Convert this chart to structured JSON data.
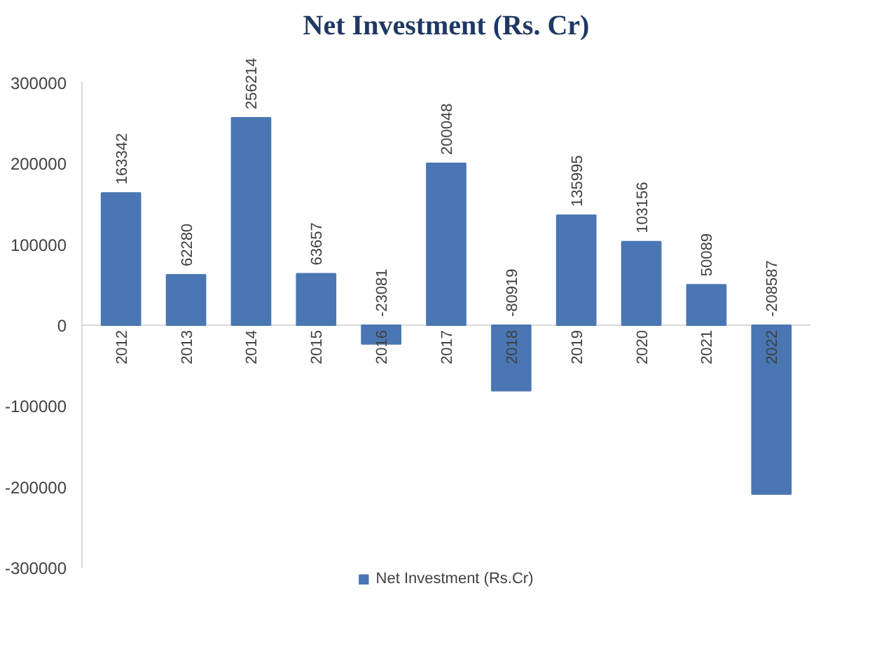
{
  "chart_data": {
    "type": "bar",
    "title": "Net Investment (Rs. Cr)",
    "categories": [
      "2012",
      "2013",
      "2014",
      "2015",
      "2016",
      "2017",
      "2018",
      "2019",
      "2020",
      "2021",
      "2022"
    ],
    "series": [
      {
        "name": "Net Investment (Rs.Cr)",
        "color": "#4a77b4",
        "values": [
          163342,
          62280,
          256214,
          63657,
          -23081,
          200048,
          -80919,
          135995,
          103156,
          50089,
          -208587
        ]
      }
    ],
    "ylim": [
      -300000,
      300000
    ],
    "yticks": [
      -300000,
      -200000,
      -100000,
      0,
      100000,
      200000,
      300000
    ],
    "grid": false,
    "legend": "bottom",
    "data_labels": true
  }
}
